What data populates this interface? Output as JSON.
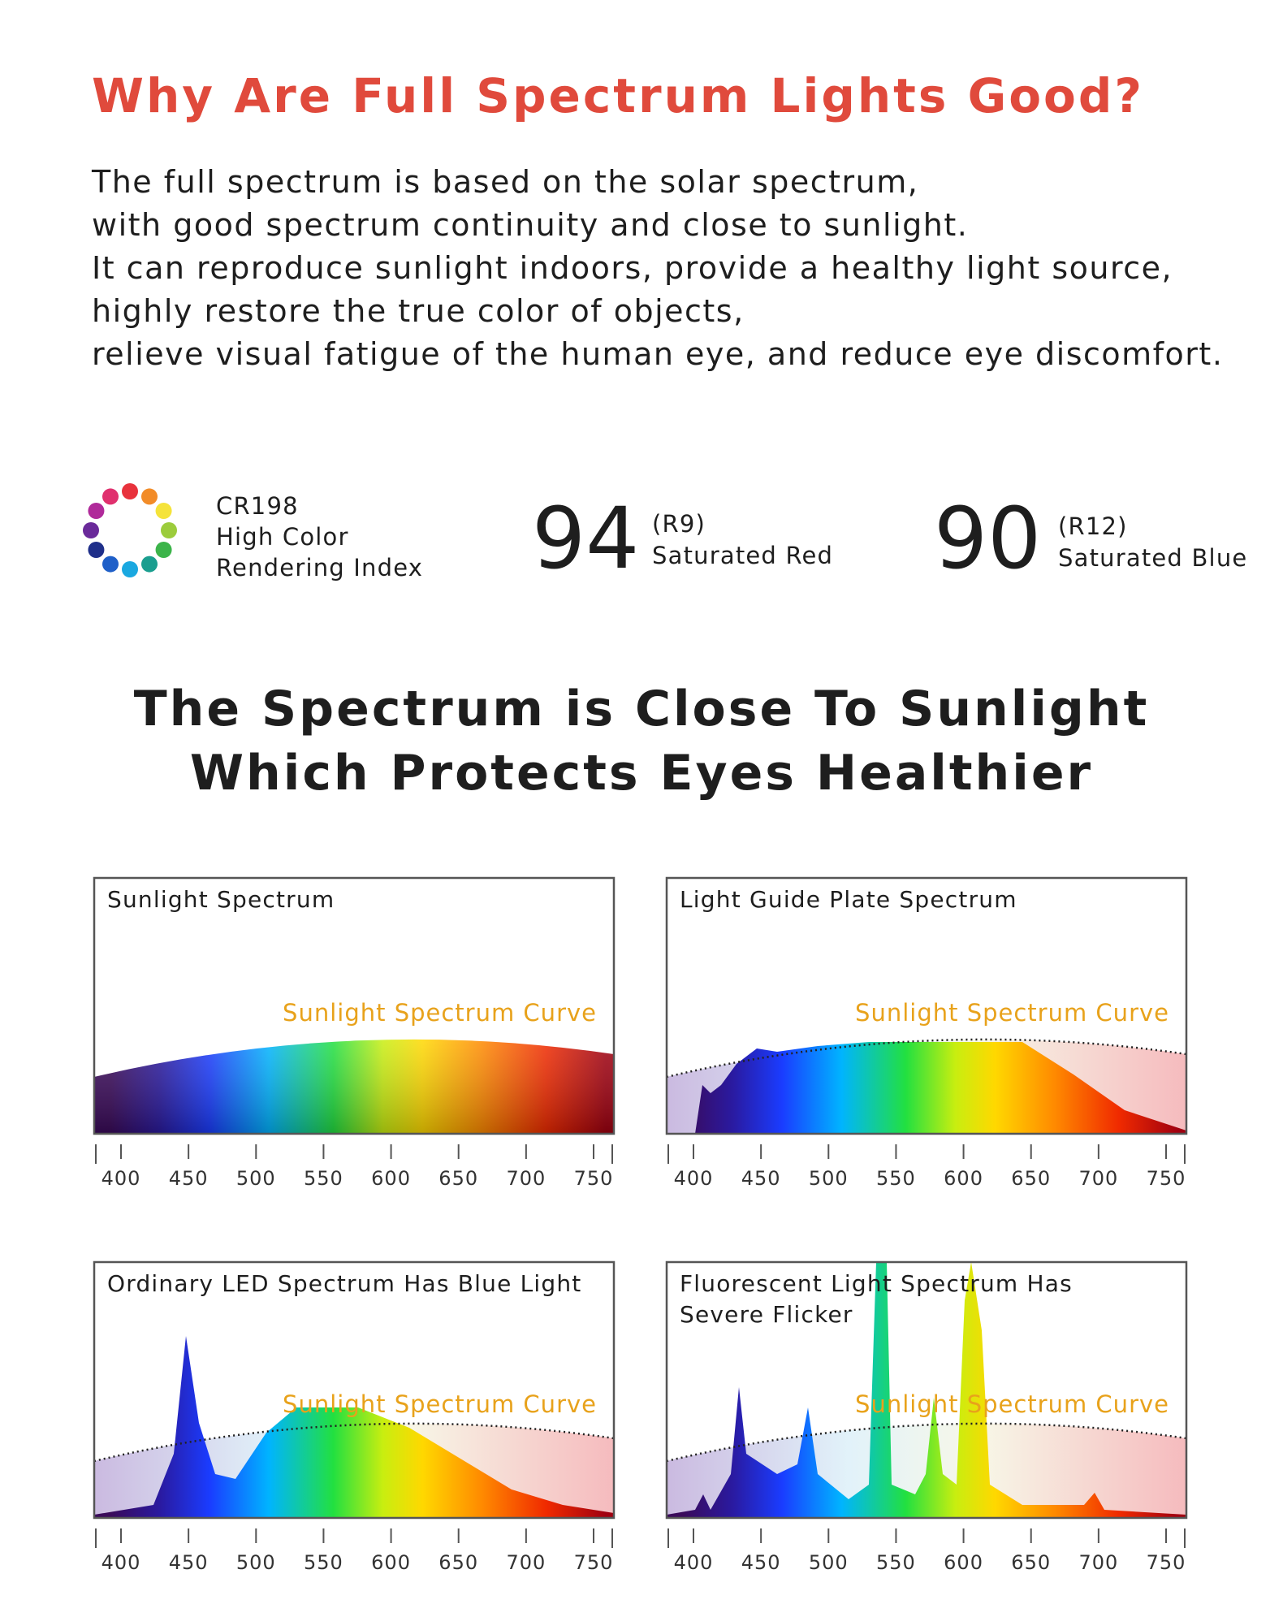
{
  "header": {
    "title": "Why Are Full Spectrum Lights Good?",
    "paragraph": [
      "The full spectrum is based on the solar spectrum,",
      "with good spectrum continuity and close to sunlight.",
      "It can reproduce sunlight indoors, provide a healthy light source,",
      "highly restore the true color of objects,",
      "relieve visual fatigue of the human eye, and reduce eye discomfort."
    ]
  },
  "stats": [
    {
      "lines": [
        "CR198",
        "High Color",
        "Rendering Index"
      ]
    },
    {
      "number": "94",
      "code": "(R9)",
      "label": "Saturated Red"
    },
    {
      "number": "90",
      "code": "(R12)",
      "label": "Saturated Blue"
    }
  ],
  "section_title": [
    "The Spectrum is Close To Sunlight",
    "Which Protects Eyes Healthier"
  ],
  "panels": [
    {
      "title": [
        "Sunlight Spectrum"
      ],
      "curve_label": "Sunlight Spectrum Curve",
      "axis_ticks": [
        400,
        450,
        500,
        550,
        600,
        650,
        700,
        750
      ]
    },
    {
      "title": [
        "Light Guide Plate Spectrum"
      ],
      "curve_label": "Sunlight Spectrum Curve",
      "axis_ticks": [
        400,
        450,
        500,
        550,
        600,
        650,
        700,
        750
      ]
    },
    {
      "title": [
        "Ordinary LED Spectrum Has Blue Light"
      ],
      "curve_label": "Sunlight Spectrum Curve",
      "axis_ticks": [
        400,
        450,
        500,
        550,
        600,
        650,
        700,
        750
      ]
    },
    {
      "title": [
        "Fluorescent Light Spectrum Has",
        "Severe Flicker"
      ],
      "curve_label": "Sunlight Spectrum Curve",
      "axis_ticks": [
        400,
        450,
        500,
        550,
        600,
        650,
        700,
        750
      ]
    }
  ]
}
